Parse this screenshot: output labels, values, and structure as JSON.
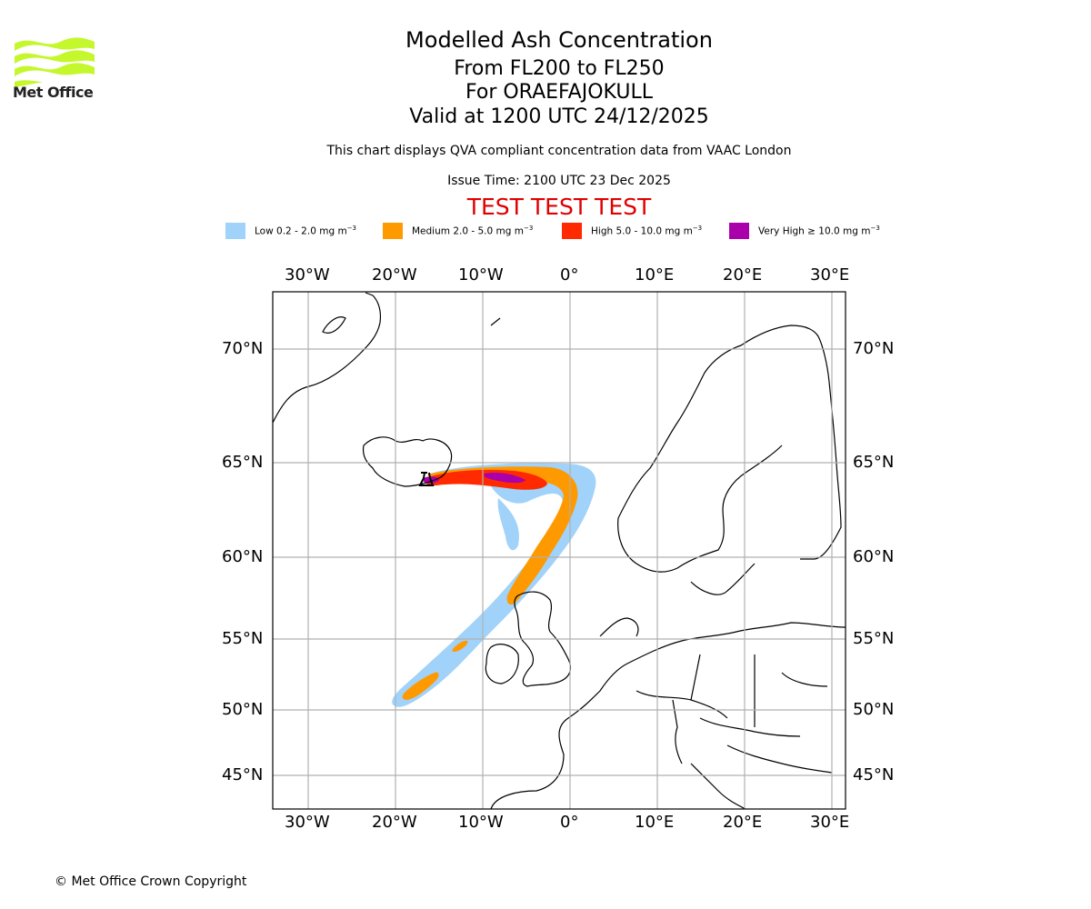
{
  "logo": {
    "text": "Met Office",
    "color": "#c4f72c"
  },
  "header": {
    "title": "Modelled Ash Concentration",
    "levels": "From FL200 to FL250",
    "volcano": "For ORAEFAJOKULL",
    "valid": "Valid at 1200 UTC 24/12/2025",
    "subtitle": "This chart displays QVA compliant concentration data from VAAC London",
    "issue_time": "Issue Time: 2100 UTC 23 Dec 2025",
    "test_banner": "TEST TEST TEST",
    "test_color": "#e00000"
  },
  "legend": [
    {
      "label": "Low 0.2 - 2.0 mg m",
      "exp": "−3",
      "color": "#a0d2fa"
    },
    {
      "label": "Medium 2.0 - 5.0 mg m",
      "exp": "−3",
      "color": "#ff9900"
    },
    {
      "label": "High 5.0 - 10.0 mg m",
      "exp": "−3",
      "color": "#ff2a00"
    },
    {
      "label": "Very High  ≥  10.0 mg m",
      "exp": "−3",
      "color": "#aa00aa"
    }
  ],
  "axes": {
    "lon_ticks": [
      "30°W",
      "20°W",
      "10°W",
      "0°",
      "10°E",
      "20°E",
      "30°E"
    ],
    "lon_values": [
      -30,
      -20,
      -10,
      0,
      10,
      20,
      30
    ],
    "lat_ticks": [
      "70°N",
      "65°N",
      "60°N",
      "55°N",
      "50°N",
      "45°N"
    ],
    "lat_values": [
      70,
      65,
      60,
      55,
      50,
      45
    ]
  },
  "footer": {
    "copyright": "© Met Office Crown Copyright"
  }
}
